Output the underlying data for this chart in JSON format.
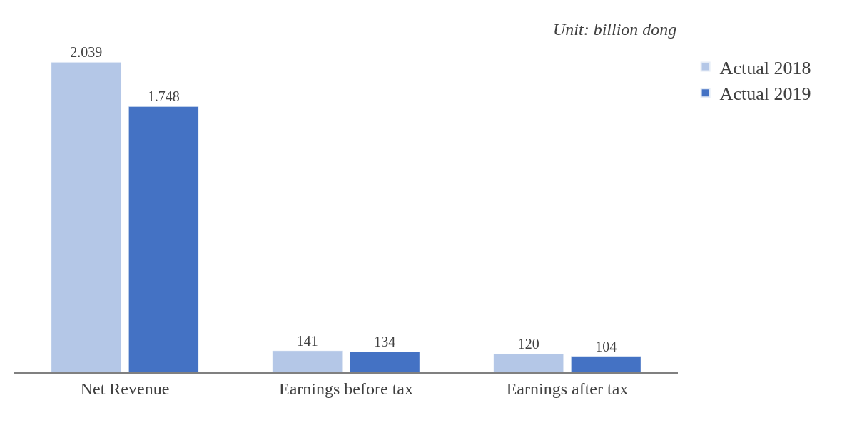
{
  "chart_data": {
    "type": "bar",
    "categories": [
      "Net Revenue",
      "Earnings before tax",
      "Earnings after tax"
    ],
    "series": [
      {
        "name": "Actual 2018",
        "color": "#b4c7e7",
        "values": [
          2039,
          141,
          120
        ],
        "value_labels": [
          "2.039",
          "141",
          "120"
        ]
      },
      {
        "name": "Actual 2019",
        "color": "#4472c4",
        "values": [
          1748,
          134,
          104
        ],
        "value_labels": [
          "1.748",
          "134",
          "104"
        ]
      }
    ],
    "annotations": [
      "Unit: billion dong"
    ],
    "legend": "right",
    "tick_labels": "x"
  }
}
